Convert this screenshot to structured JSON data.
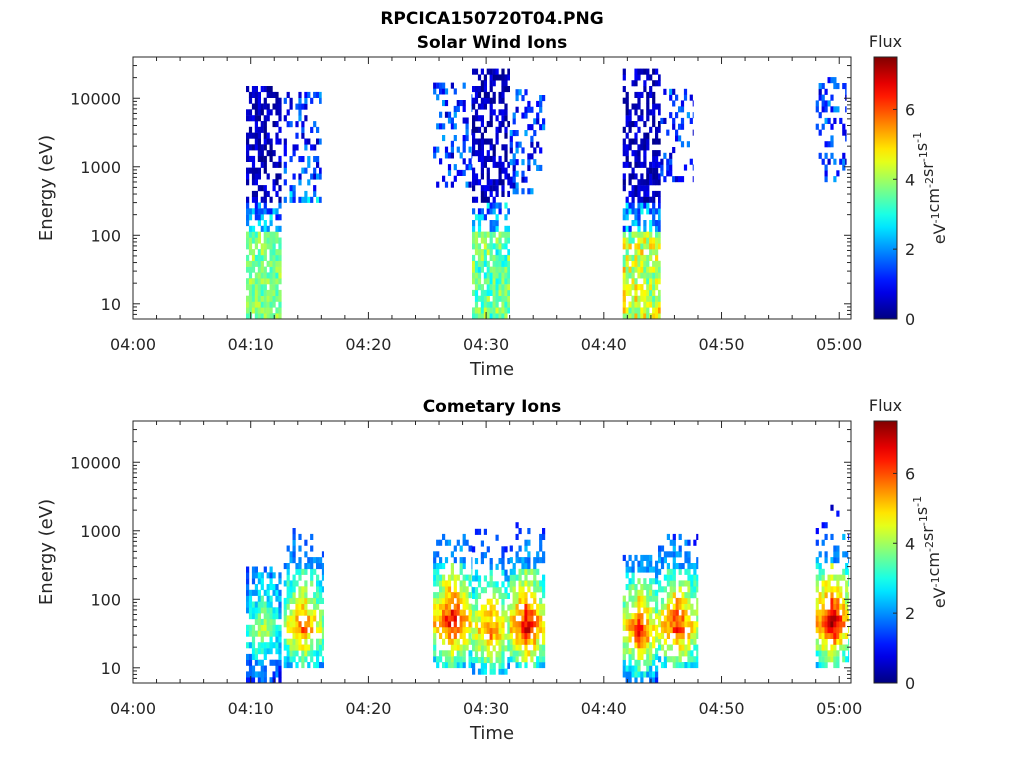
{
  "figure_title": "RPCICA150720T04.PNG",
  "chart_data": [
    {
      "type": "heatmap",
      "title": "Solar Wind Ions",
      "xlabel": "Time",
      "ylabel": "Energy (eV)",
      "xlim": [
        "04:00",
        "05:01"
      ],
      "xticks": [
        "04:00",
        "04:10",
        "04:20",
        "04:30",
        "04:40",
        "04:50",
        "05:00"
      ],
      "y_scale": "log",
      "ylim": [
        6,
        40000
      ],
      "yticks": [
        "10",
        "100",
        "1000",
        "10000"
      ],
      "colorbar": {
        "title": "Flux",
        "label": "eV-1cm-2sr-1s-1",
        "range": [
          0,
          7.5
        ],
        "ticks": [
          "0",
          "2",
          "4",
          "6"
        ],
        "colormap": "jet"
      },
      "grid": false,
      "bursts": [
        {
          "start": "04:09.6",
          "end": "04:12.6",
          "emin": 6,
          "emax": 15000,
          "dense_above": 300,
          "low_flux": 3.5,
          "peak_low_e": 4.0
        },
        {
          "start": "04:12.8",
          "end": "04:16.0",
          "emin": 300,
          "emax": 12000,
          "dense_above": 100000,
          "low_flux": 2.2,
          "peak_low_e": 2.2
        },
        {
          "start": "04:25.5",
          "end": "04:28.8",
          "emin": 500,
          "emax": 14000,
          "dense_above": 100000,
          "low_flux": 2.0,
          "peak_low_e": 2.0
        },
        {
          "start": "04:28.8",
          "end": "04:32.0",
          "emin": 6,
          "emax": 25000,
          "dense_above": 300,
          "low_flux": 3.0,
          "peak_low_e": 4.0
        },
        {
          "start": "04:32.0",
          "end": "04:35.0",
          "emin": 400,
          "emax": 12000,
          "dense_above": 100000,
          "low_flux": 2.0,
          "peak_low_e": 2.0
        },
        {
          "start": "04:41.6",
          "end": "04:44.8",
          "emin": 6,
          "emax": 25000,
          "dense_above": 300,
          "low_flux": 3.5,
          "peak_low_e": 5.0
        },
        {
          "start": "04:44.8",
          "end": "04:47.6",
          "emin": 600,
          "emax": 12000,
          "dense_above": 100000,
          "low_flux": 2.0,
          "peak_low_e": 2.0
        },
        {
          "start": "04:58.0",
          "end": "05:00.6",
          "emin": 600,
          "emax": 20000,
          "dense_above": 100000,
          "low_flux": 1.8,
          "peak_low_e": 1.8
        }
      ]
    },
    {
      "type": "heatmap",
      "title": "Cometary Ions",
      "xlabel": "Time",
      "ylabel": "Energy (eV)",
      "xlim": [
        "04:00",
        "05:01"
      ],
      "xticks": [
        "04:00",
        "04:10",
        "04:20",
        "04:30",
        "04:40",
        "04:50",
        "05:00"
      ],
      "y_scale": "log",
      "ylim": [
        6,
        40000
      ],
      "yticks": [
        "10",
        "100",
        "1000",
        "10000"
      ],
      "colorbar": {
        "title": "Flux",
        "label": "eV-1cm-2sr-1s-1",
        "range": [
          0,
          7.5
        ],
        "ticks": [
          "0",
          "2",
          "4",
          "6"
        ],
        "colormap": "jet"
      },
      "grid": false,
      "bursts": [
        {
          "start": "04:09.6",
          "end": "04:12.6",
          "emin": 6,
          "emax": 300,
          "peak_e": 30,
          "peak_flux": 4.2
        },
        {
          "start": "04:12.8",
          "end": "04:16.2",
          "emin": 10,
          "emax": 1000,
          "peak_e": 35,
          "peak_flux": 6.0
        },
        {
          "start": "04:25.5",
          "end": "04:28.8",
          "emin": 10,
          "emax": 800,
          "peak_e": 40,
          "peak_flux": 7.0
        },
        {
          "start": "04:28.8",
          "end": "04:32.0",
          "emin": 8,
          "emax": 900,
          "peak_e": 30,
          "peak_flux": 6.0
        },
        {
          "start": "04:32.0",
          "end": "04:35.0",
          "emin": 10,
          "emax": 1100,
          "peak_e": 35,
          "peak_flux": 7.0
        },
        {
          "start": "04:41.6",
          "end": "04:44.6",
          "emin": 6,
          "emax": 400,
          "peak_e": 30,
          "peak_flux": 6.5
        },
        {
          "start": "04:44.6",
          "end": "04:48.0",
          "emin": 10,
          "emax": 900,
          "peak_e": 35,
          "peak_flux": 6.5
        },
        {
          "start": "04:58.0",
          "end": "05:00.8",
          "emin": 10,
          "emax": 2000,
          "peak_e": 40,
          "peak_flux": 7.5
        }
      ]
    }
  ]
}
